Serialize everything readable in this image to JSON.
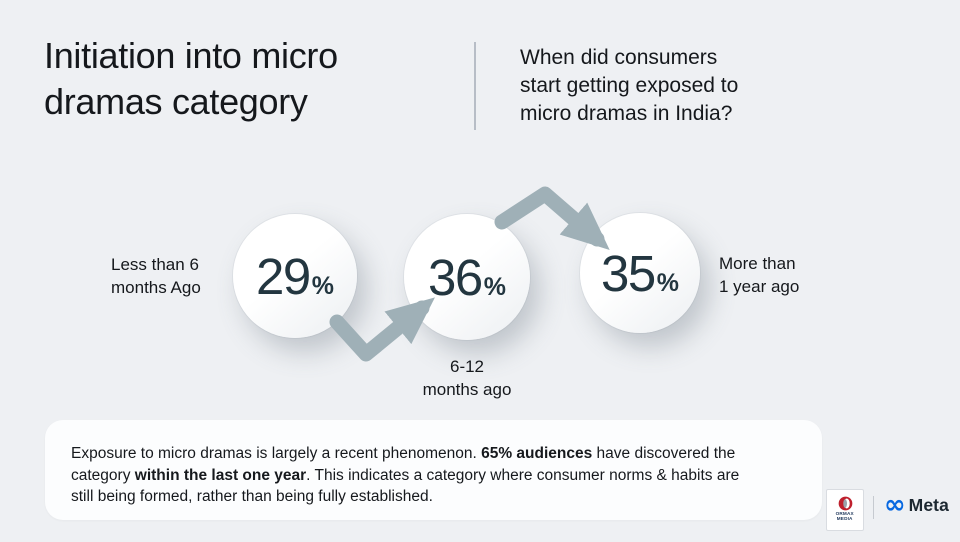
{
  "header": {
    "title_lines": [
      "Initiation into micro",
      "dramas category"
    ],
    "question_lines": [
      "When did consumers",
      "start getting exposed to",
      "micro dramas in India?"
    ]
  },
  "steps": [
    {
      "value": "29",
      "unit": "%",
      "label_lines": [
        "Less than 6",
        "months Ago"
      ]
    },
    {
      "value": "36",
      "unit": "%",
      "label_lines": [
        "6-12",
        "months ago"
      ]
    },
    {
      "value": "35",
      "unit": "%",
      "label_lines": [
        "More than",
        "1 year ago"
      ]
    }
  ],
  "summary": {
    "segments": [
      {
        "text": "Exposure to micro dramas is largely a recent phenomenon. ",
        "bold": false
      },
      {
        "text": "65% audiences",
        "bold": true
      },
      {
        "text": " have discovered the category ",
        "bold": false
      },
      {
        "text": "within the last one year",
        "bold": true
      },
      {
        "text": ". This indicates a category where consumer norms & habits are still being formed, rather than being fully established.",
        "bold": false
      }
    ]
  },
  "footer": {
    "ormax_lines": [
      "ORMAX",
      "MEDIA"
    ],
    "meta_infinity_glyph": "∞",
    "meta_text": "Meta"
  },
  "colors": {
    "background": "#eef0f3",
    "arrow": "#9fb0b7",
    "number": "#233640",
    "text": "#15181c",
    "summary_bg": "#fcfdfe",
    "meta_blue": "#0768e1",
    "ormax_red": "#bf202d"
  },
  "chart_data": {
    "type": "bar",
    "categories": [
      "Less than 6 months Ago",
      "6-12 months ago",
      "More than 1 year ago"
    ],
    "values": [
      29,
      36,
      35
    ],
    "unit": "%",
    "title": "Initiation into micro dramas category",
    "subtitle": "When did consumers start getting exposed to micro dramas in India?",
    "annotation": "Exposure to micro dramas is largely a recent phenomenon. 65% audiences have discovered the category within the last one year. This indicates a category where consumer norms & habits are still being formed, rather than being fully established.",
    "layout": "three circles connected by zigzag arrows, values shown inside circles"
  }
}
